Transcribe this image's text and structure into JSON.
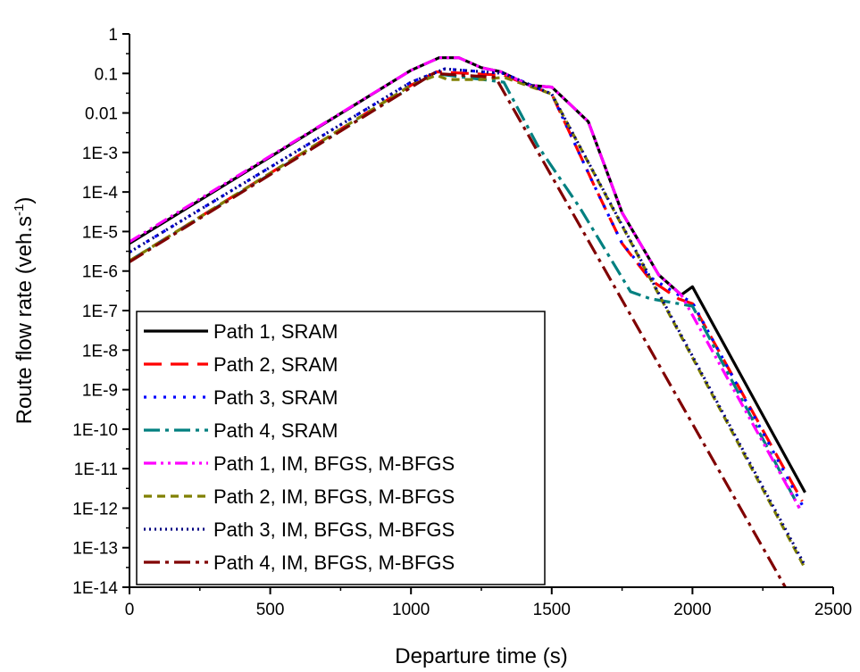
{
  "chart_data": {
    "type": "line",
    "xlabel": "Departure time (s)",
    "ylabel": "Route flow rate (veh.s",
    "ylabel_superscript": "-1",
    "ylabel_suffix": ")",
    "y_scale": "log",
    "xlim": [
      0,
      2500
    ],
    "ylim_exponent": [
      -14,
      0
    ],
    "x_ticks": [
      0,
      500,
      1000,
      1500,
      2000,
      2500
    ],
    "x_tick_labels": [
      "0",
      "500",
      "1000",
      "1500",
      "2000",
      "2500"
    ],
    "y_tick_exponents": [
      0,
      -1,
      -2,
      -3,
      -4,
      -5,
      -6,
      -7,
      -8,
      -9,
      -10,
      -11,
      -12,
      -13,
      -14
    ],
    "y_tick_labels": [
      "1",
      "0.1",
      "0.01",
      "1E-3",
      "1E-4",
      "1E-5",
      "1E-6",
      "1E-7",
      "1E-8",
      "1E-9",
      "1E-10",
      "1E-11",
      "1E-12",
      "1E-13",
      "1E-14"
    ],
    "legend_position": "bottom-left",
    "series": [
      {
        "name": "Path 1, SRAM",
        "color": "#000000",
        "dash": "solid",
        "x": [
          0,
          1000,
          1100,
          1170,
          1250,
          1320,
          1420,
          1500,
          1560,
          1630,
          1750,
          1880,
          1960,
          2000,
          2400
        ],
        "y": [
          5e-06,
          0.12,
          0.25,
          0.25,
          0.14,
          0.11,
          0.05,
          0.045,
          0.018,
          0.006,
          3e-05,
          8e-07,
          2.5e-07,
          4e-07,
          2.5e-12
        ]
      },
      {
        "name": "Path 2, SRAM",
        "color": "#ff0000",
        "dash": "longdash",
        "x": [
          0,
          1000,
          1090,
          1330,
          1500,
          1650,
          1750,
          1850,
          1950,
          2000,
          2390
        ],
        "y": [
          1.8e-06,
          0.05,
          0.11,
          0.09,
          0.03,
          0.00015,
          5e-06,
          6e-07,
          2e-07,
          1.5e-07,
          1.5e-12
        ]
      },
      {
        "name": "Path 3, SRAM",
        "color": "#0000ff",
        "dash": "dot",
        "x": [
          0,
          1000,
          1120,
          1330,
          1500,
          1650,
          1750,
          1850,
          1950,
          2000,
          2390
        ],
        "y": [
          3e-06,
          0.06,
          0.13,
          0.1,
          0.03,
          0.00015,
          5e-06,
          7e-07,
          2.5e-07,
          1.6e-07,
          1.2e-12
        ]
      },
      {
        "name": "Path 4, SRAM",
        "color": "#008080",
        "dash": "dashdot",
        "x": [
          0,
          1080,
          1330,
          1450,
          1600,
          1780,
          1850,
          2000,
          2380
        ],
        "y": [
          1.8e-06,
          0.1,
          0.06,
          0.0015,
          4e-05,
          3e-07,
          2e-07,
          1.3e-07,
          1e-12
        ]
      },
      {
        "name": "Path 1, IM, BFGS, M-BFGS",
        "color": "#ff00ff",
        "dash": "dashdotdot",
        "x": [
          0,
          1000,
          1100,
          1170,
          1250,
          1320,
          1420,
          1500,
          1560,
          1630,
          1750,
          1880,
          1960,
          2380
        ],
        "y": [
          5.5e-06,
          0.12,
          0.25,
          0.25,
          0.14,
          0.11,
          0.05,
          0.045,
          0.018,
          0.006,
          3e-05,
          8e-07,
          2.5e-07,
          1e-12
        ]
      },
      {
        "name": "Path 2, IM, BFGS, M-BFGS",
        "color": "#808000",
        "dash": "shortdash",
        "x": [
          0,
          1000,
          1090,
          1130,
          1250,
          1330,
          1500,
          2400
        ],
        "y": [
          1.8e-06,
          0.05,
          0.09,
          0.07,
          0.07,
          0.08,
          0.03,
          3e-14
        ]
      },
      {
        "name": "Path 3, IM, BFGS, M-BFGS",
        "color": "#000080",
        "dash": "shortdot",
        "x": [
          0,
          1000,
          1120,
          1330,
          1500,
          2400
        ],
        "y": [
          3e-06,
          0.06,
          0.13,
          0.1,
          0.03,
          3.5e-14
        ]
      },
      {
        "name": "Path 4, IM, BFGS, M-BFGS",
        "color": "#800000",
        "dash": "dashdot",
        "x": [
          0,
          1080,
          1300,
          2330
        ],
        "y": [
          1.7e-06,
          0.1,
          0.08,
          1e-14
        ]
      }
    ]
  }
}
